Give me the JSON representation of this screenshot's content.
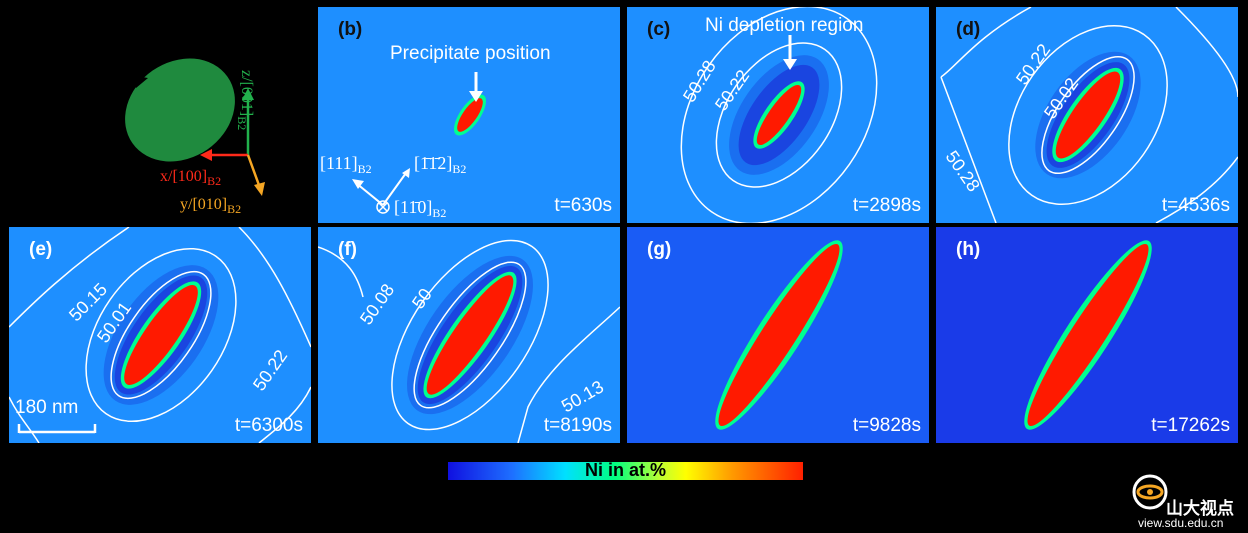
{
  "inset": {
    "x_axis": "x/[100]",
    "y_axis": "y/[010]",
    "z_axis": "z/[001]",
    "subscript": "B2",
    "colors": {
      "x": "#ff2a1a",
      "y": "#f5a623",
      "z": "#22b14c",
      "particle": "#1f8a3e"
    }
  },
  "panel_b": {
    "label": "(b)",
    "time": "t=630s",
    "precipitate_label": "Precipitate position",
    "dir_111": "[111]",
    "dir_112": "[1̄1̄2]",
    "dir_110": "[11̄0]",
    "subscript": "B2"
  },
  "panel_c": {
    "label": "(c)",
    "time": "t=2898s",
    "annotation": "Ni depletion region",
    "contours": [
      "50.28",
      "50.22"
    ]
  },
  "panel_d": {
    "label": "(d)",
    "time": "t=4536s",
    "contours": [
      "50.22",
      "50.02",
      "50.28"
    ]
  },
  "panel_e": {
    "label": "(e)",
    "time": "t=6300s",
    "contours": [
      "50.15",
      "50.01",
      "50.22"
    ],
    "scale_bar": "180 nm"
  },
  "panel_f": {
    "label": "(f)",
    "time": "t=8190s",
    "contours": [
      "50.08",
      "50",
      "50.13"
    ]
  },
  "panel_g": {
    "label": "(g)",
    "time": "t=9828s"
  },
  "panel_h": {
    "label": "(h)",
    "time": "t=17262s"
  },
  "colorbar": {
    "label": "Ni in at.%"
  },
  "watermark": {
    "name": "山大视点",
    "url": "view.sdu.edu.cn"
  },
  "colors": {
    "matrix_b": "#1e8fff",
    "matrix_h": "#1a3be8",
    "precipitate": "#ff1a00",
    "ring": "#00ff90"
  }
}
